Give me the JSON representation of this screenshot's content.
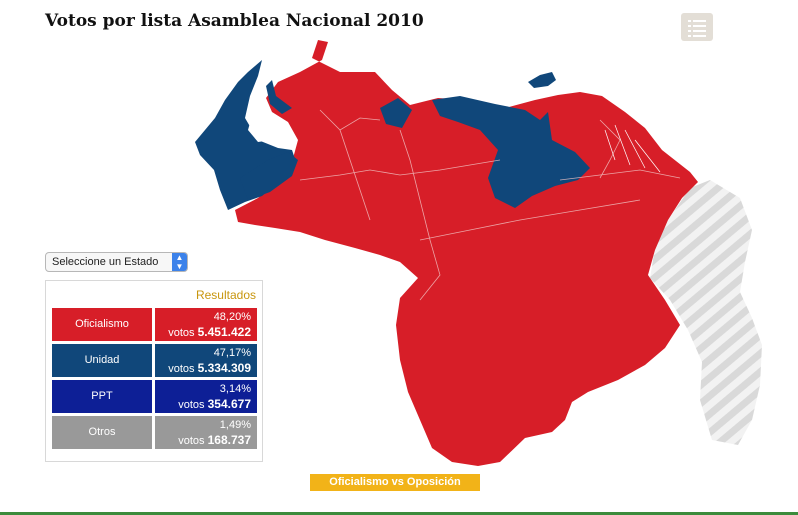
{
  "title": "Votos por lista Asamblea Nacional 2010",
  "menu_icon": "list-icon",
  "state_select": {
    "selected": "Seleccione un Estado"
  },
  "results": {
    "header": "Resultados",
    "rows": [
      {
        "name": "Oficialismo",
        "percent": "48,20%",
        "votes_label": "votos",
        "votes": "5.451.422",
        "color": "#d71e28"
      },
      {
        "name": "Unidad",
        "percent": "47,17%",
        "votes_label": "votos",
        "votes": "5.334.309",
        "color": "#10477a"
      },
      {
        "name": "PPT",
        "percent": "3,14%",
        "votes_label": "votos",
        "votes": "354.677",
        "color": "#0d1f96"
      },
      {
        "name": "Otros",
        "percent": "1,49%",
        "votes_label": "votos",
        "votes": "168.737",
        "color": "#999999"
      }
    ]
  },
  "toggle_button": "Oficialismo vs Oposición",
  "map_colors": {
    "oficialismo": "#d71e28",
    "unidad": "#10477a",
    "disputed": "#dcdcdc"
  }
}
